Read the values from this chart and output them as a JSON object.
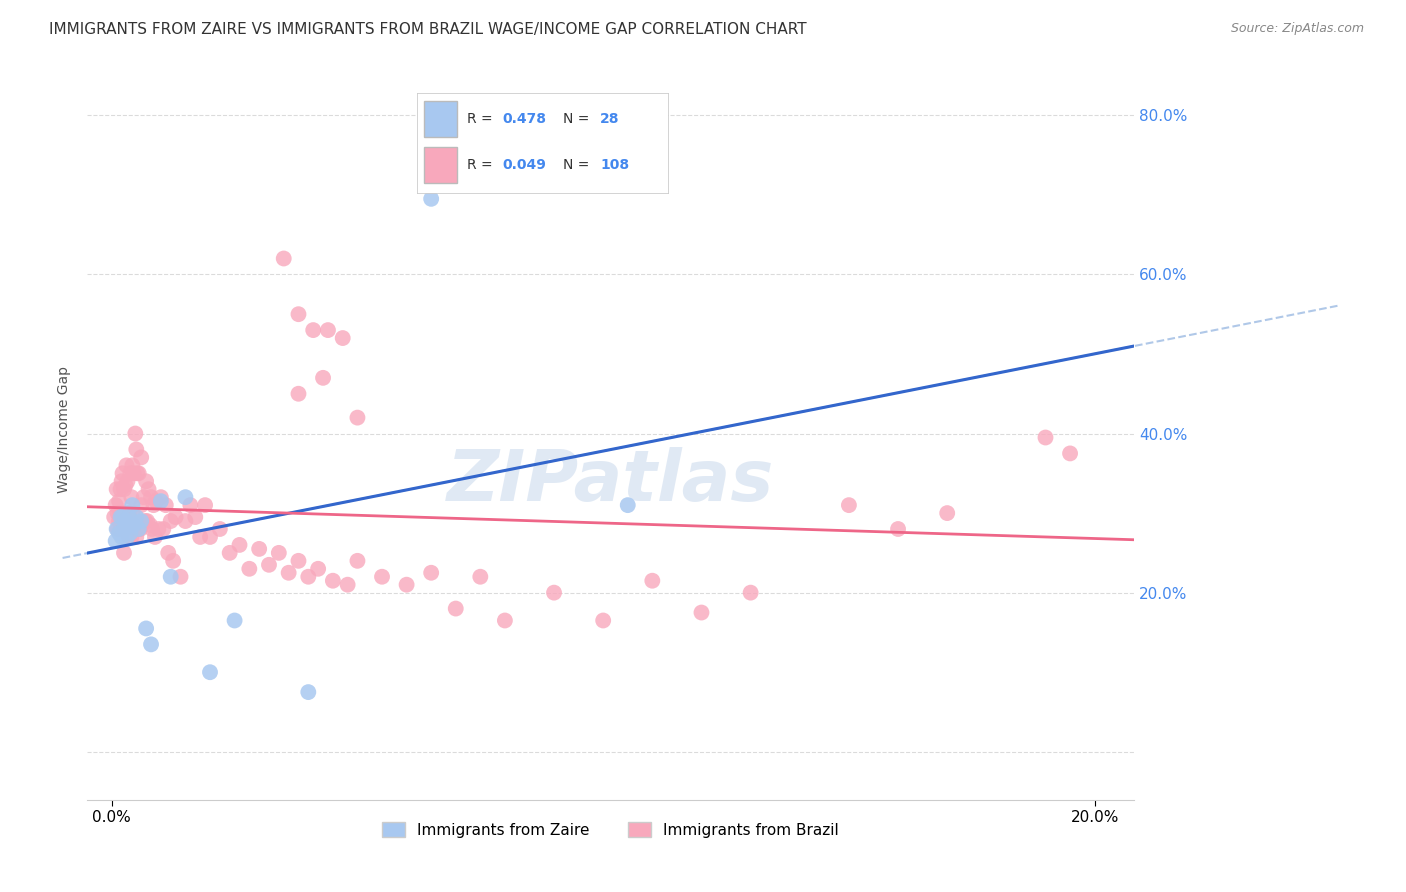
{
  "title": "IMMIGRANTS FROM ZAIRE VS IMMIGRANTS FROM BRAZIL WAGE/INCOME GAP CORRELATION CHART",
  "source": "Source: ZipAtlas.com",
  "ylabel": "Wage/Income Gap",
  "zaire_R": 0.478,
  "zaire_N": 28,
  "brazil_R": 0.049,
  "brazil_N": 108,
  "zaire_color": "#a8c8f0",
  "brazil_color": "#f8a8bc",
  "zaire_line_color": "#3366cc",
  "brazil_line_color": "#ee6688",
  "dashed_line_color": "#b0c8e8",
  "legend_label_zaire": "Immigrants from Zaire",
  "legend_label_brazil": "Immigrants from Brazil",
  "background_color": "#ffffff",
  "grid_color": "#cccccc",
  "watermark": "ZIPatlas",
  "zaire_x": [
    0.0008,
    0.001,
    0.0015,
    0.0018,
    0.002,
    0.0022,
    0.0025,
    0.0028,
    0.003,
    0.0032,
    0.0035,
    0.0038,
    0.004,
    0.0042,
    0.0045,
    0.005,
    0.0055,
    0.006,
    0.007,
    0.008,
    0.01,
    0.012,
    0.015,
    0.02,
    0.025,
    0.04,
    0.065,
    0.105
  ],
  "zaire_y": [
    0.265,
    0.28,
    0.275,
    0.295,
    0.27,
    0.295,
    0.28,
    0.29,
    0.268,
    0.285,
    0.295,
    0.275,
    0.285,
    0.31,
    0.285,
    0.295,
    0.28,
    0.29,
    0.155,
    0.135,
    0.315,
    0.22,
    0.32,
    0.1,
    0.165,
    0.075,
    0.695,
    0.31
  ],
  "brazil_x": [
    0.0005,
    0.0008,
    0.001,
    0.0012,
    0.0012,
    0.0015,
    0.0015,
    0.0018,
    0.0018,
    0.0018,
    0.002,
    0.002,
    0.0022,
    0.0022,
    0.0024,
    0.0025,
    0.0025,
    0.0028,
    0.0028,
    0.0028,
    0.003,
    0.003,
    0.0032,
    0.0032,
    0.0035,
    0.0035,
    0.0038,
    0.0038,
    0.004,
    0.004,
    0.0042,
    0.0042,
    0.0045,
    0.0045,
    0.0048,
    0.0048,
    0.005,
    0.005,
    0.0052,
    0.0055,
    0.0055,
    0.0058,
    0.006,
    0.006,
    0.0065,
    0.0068,
    0.007,
    0.0072,
    0.0075,
    0.0078,
    0.008,
    0.0082,
    0.0085,
    0.0088,
    0.009,
    0.0095,
    0.01,
    0.0105,
    0.011,
    0.0115,
    0.012,
    0.0125,
    0.013,
    0.014,
    0.015,
    0.016,
    0.017,
    0.018,
    0.019,
    0.02,
    0.022,
    0.024,
    0.026,
    0.028,
    0.03,
    0.032,
    0.034,
    0.036,
    0.038,
    0.04,
    0.042,
    0.045,
    0.048,
    0.05,
    0.055,
    0.06,
    0.065,
    0.07,
    0.075,
    0.08,
    0.09,
    0.1,
    0.11,
    0.12,
    0.13,
    0.15,
    0.16,
    0.17,
    0.19,
    0.195,
    0.035,
    0.038,
    0.041,
    0.044,
    0.047,
    0.05,
    0.038,
    0.043
  ],
  "brazil_y": [
    0.295,
    0.31,
    0.33,
    0.3,
    0.28,
    0.315,
    0.29,
    0.33,
    0.28,
    0.3,
    0.34,
    0.28,
    0.35,
    0.28,
    0.3,
    0.33,
    0.25,
    0.335,
    0.295,
    0.28,
    0.36,
    0.295,
    0.285,
    0.34,
    0.3,
    0.27,
    0.35,
    0.29,
    0.32,
    0.27,
    0.36,
    0.3,
    0.35,
    0.28,
    0.4,
    0.28,
    0.38,
    0.27,
    0.35,
    0.28,
    0.35,
    0.28,
    0.37,
    0.31,
    0.32,
    0.29,
    0.34,
    0.29,
    0.33,
    0.285,
    0.32,
    0.28,
    0.31,
    0.27,
    0.315,
    0.28,
    0.32,
    0.28,
    0.31,
    0.25,
    0.29,
    0.24,
    0.295,
    0.22,
    0.29,
    0.31,
    0.295,
    0.27,
    0.31,
    0.27,
    0.28,
    0.25,
    0.26,
    0.23,
    0.255,
    0.235,
    0.25,
    0.225,
    0.24,
    0.22,
    0.23,
    0.215,
    0.21,
    0.24,
    0.22,
    0.21,
    0.225,
    0.18,
    0.22,
    0.165,
    0.2,
    0.165,
    0.215,
    0.175,
    0.2,
    0.31,
    0.28,
    0.3,
    0.395,
    0.375,
    0.62,
    0.55,
    0.53,
    0.53,
    0.52,
    0.42,
    0.45,
    0.47
  ],
  "xlim": [
    -0.005,
    0.208
  ],
  "ylim": [
    -0.06,
    0.87
  ],
  "ytick_vals": [
    0.0,
    0.2,
    0.4,
    0.6,
    0.8
  ],
  "ytick_labels": [
    "",
    "20.0%",
    "40.0%",
    "60.0%",
    "80.0%"
  ],
  "right_tick_color": "#4488ee",
  "title_fontsize": 11,
  "source_fontsize": 9,
  "tick_fontsize": 11
}
